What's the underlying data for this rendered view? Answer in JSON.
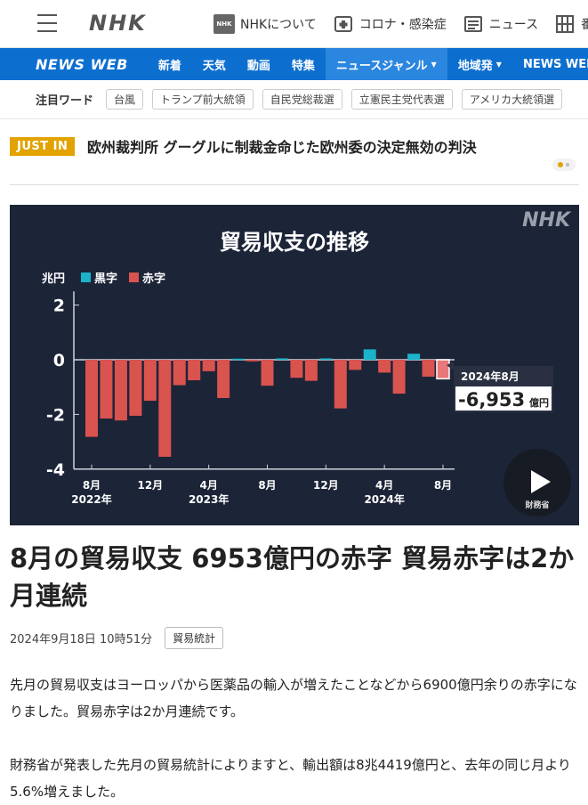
{
  "header": {
    "logo": "NHK",
    "links": [
      {
        "icon": "nhk-badge-icon",
        "icon_text": "NHK",
        "label": "NHKについて"
      },
      {
        "icon": "medical-icon",
        "label": "コロナ・感染症"
      },
      {
        "icon": "newspaper-icon",
        "label": "ニュース"
      },
      {
        "icon": "grid-icon",
        "label": "番組"
      }
    ]
  },
  "nav": {
    "brand": "NEWS WEB",
    "items": [
      {
        "label": "新着"
      },
      {
        "label": "天気"
      },
      {
        "label": "動画"
      },
      {
        "label": "特集"
      },
      {
        "label": "ニュースジャンル",
        "dropdown": true,
        "active": true
      },
      {
        "label": "地域発",
        "dropdown": true
      },
      {
        "label": "NEWS WEB EASY"
      }
    ],
    "dropdown_glyph": "▼"
  },
  "keywords": {
    "title": "注目ワード",
    "items": [
      "台風",
      "トランプ前大統領",
      "自民党総裁選",
      "立憲民主党代表選",
      "アメリカ大統領選"
    ]
  },
  "justin": {
    "badge": "JUST IN",
    "text": "欧州裁判所 グーグルに制裁金命じた欧州委の決定無効の判決"
  },
  "chart_data": {
    "type": "bar",
    "title": "貿易収支の推移",
    "watermark": "NHK",
    "ylabel": "兆円",
    "ylim": [
      -4,
      2.5
    ],
    "yticks": [
      2,
      0,
      -2,
      -4
    ],
    "legend": [
      {
        "name": "黒字",
        "color": "#1bb3c9"
      },
      {
        "name": "赤字",
        "color": "#d9534f"
      }
    ],
    "x_tick_labels": [
      {
        "index": 0,
        "month": "8月",
        "year": "2022年"
      },
      {
        "index": 4,
        "month": "12月",
        "year": ""
      },
      {
        "index": 8,
        "month": "4月",
        "year": "2023年"
      },
      {
        "index": 12,
        "month": "8月",
        "year": ""
      },
      {
        "index": 16,
        "month": "12月",
        "year": ""
      },
      {
        "index": 20,
        "month": "4月",
        "year": "2024年"
      },
      {
        "index": 24,
        "month": "8月",
        "year": ""
      }
    ],
    "values": [
      -2.82,
      -2.15,
      -2.22,
      -2.05,
      -1.5,
      -3.55,
      -0.93,
      -0.75,
      -0.42,
      -1.4,
      0.04,
      -0.06,
      -0.95,
      0.05,
      -0.66,
      -0.77,
      0.05,
      -1.78,
      -0.37,
      0.38,
      -0.47,
      -1.24,
      0.22,
      -0.62,
      -0.6953
    ],
    "highlight_index": 24,
    "callout": {
      "label": "2024年8月",
      "value": "-6,953",
      "unit": "億円"
    },
    "colors": {
      "surplus": "#1bb3c9",
      "deficit": "#d9534f",
      "highlight": "#e8787a",
      "background": "#1c2438"
    }
  },
  "video": {
    "source": "財務省"
  },
  "article": {
    "headline": "8月の貿易収支 6953億円の赤字 貿易赤字は2か月連続",
    "date": "2024年9月18日 10時51分",
    "tag": "貿易統計",
    "paragraphs": [
      "先月の貿易収支はヨーロッパから医薬品の輸入が増えたことなどから6900億円余りの赤字になりました。貿易赤字は2か月連続です。",
      "財務省が発表した先月の貿易統計によりますと、輸出額は8兆4419億円と、去年の同じ月より5.6%増えました。"
    ]
  }
}
